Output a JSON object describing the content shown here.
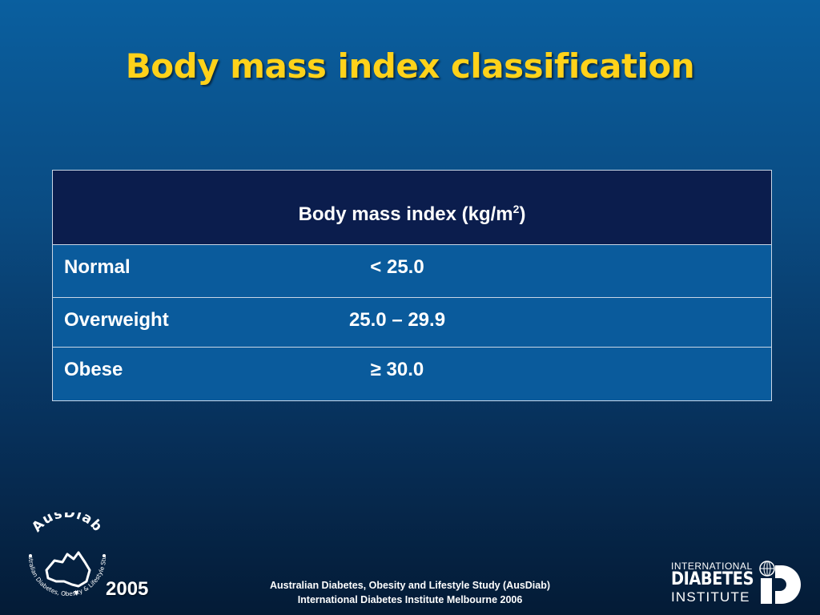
{
  "slide": {
    "title": "Body mass index classification"
  },
  "table": {
    "header": "Body mass index (kg/m",
    "header_superscript": "2",
    "header_close": ")",
    "rows": [
      {
        "category": "Normal",
        "value": "< 25.0"
      },
      {
        "category": "Overweight",
        "value": "25.0 – 29.9"
      },
      {
        "category": "Obese",
        "value": "≥ 30.0"
      }
    ]
  },
  "footer": {
    "year": "2005",
    "line1": "Australian Diabetes, Obesity and Lifestyle Study (AusDiab)",
    "line2": "International Diabetes Institute Melbourne 2006"
  },
  "logos": {
    "ausdiab_name": "AusDiab",
    "ausdiab_arc_text": "Australian Diabetes, Obesity & Lifestyle Study",
    "idi_line1": "INTERNATIONAL",
    "idi_line2": "DIABETES",
    "idi_line3": "INSTITUTE"
  },
  "colors": {
    "title": "#ffd21a",
    "header_bg": "#0b1d4d",
    "row_bg": "#0a5b9c",
    "text": "#ffffff"
  }
}
